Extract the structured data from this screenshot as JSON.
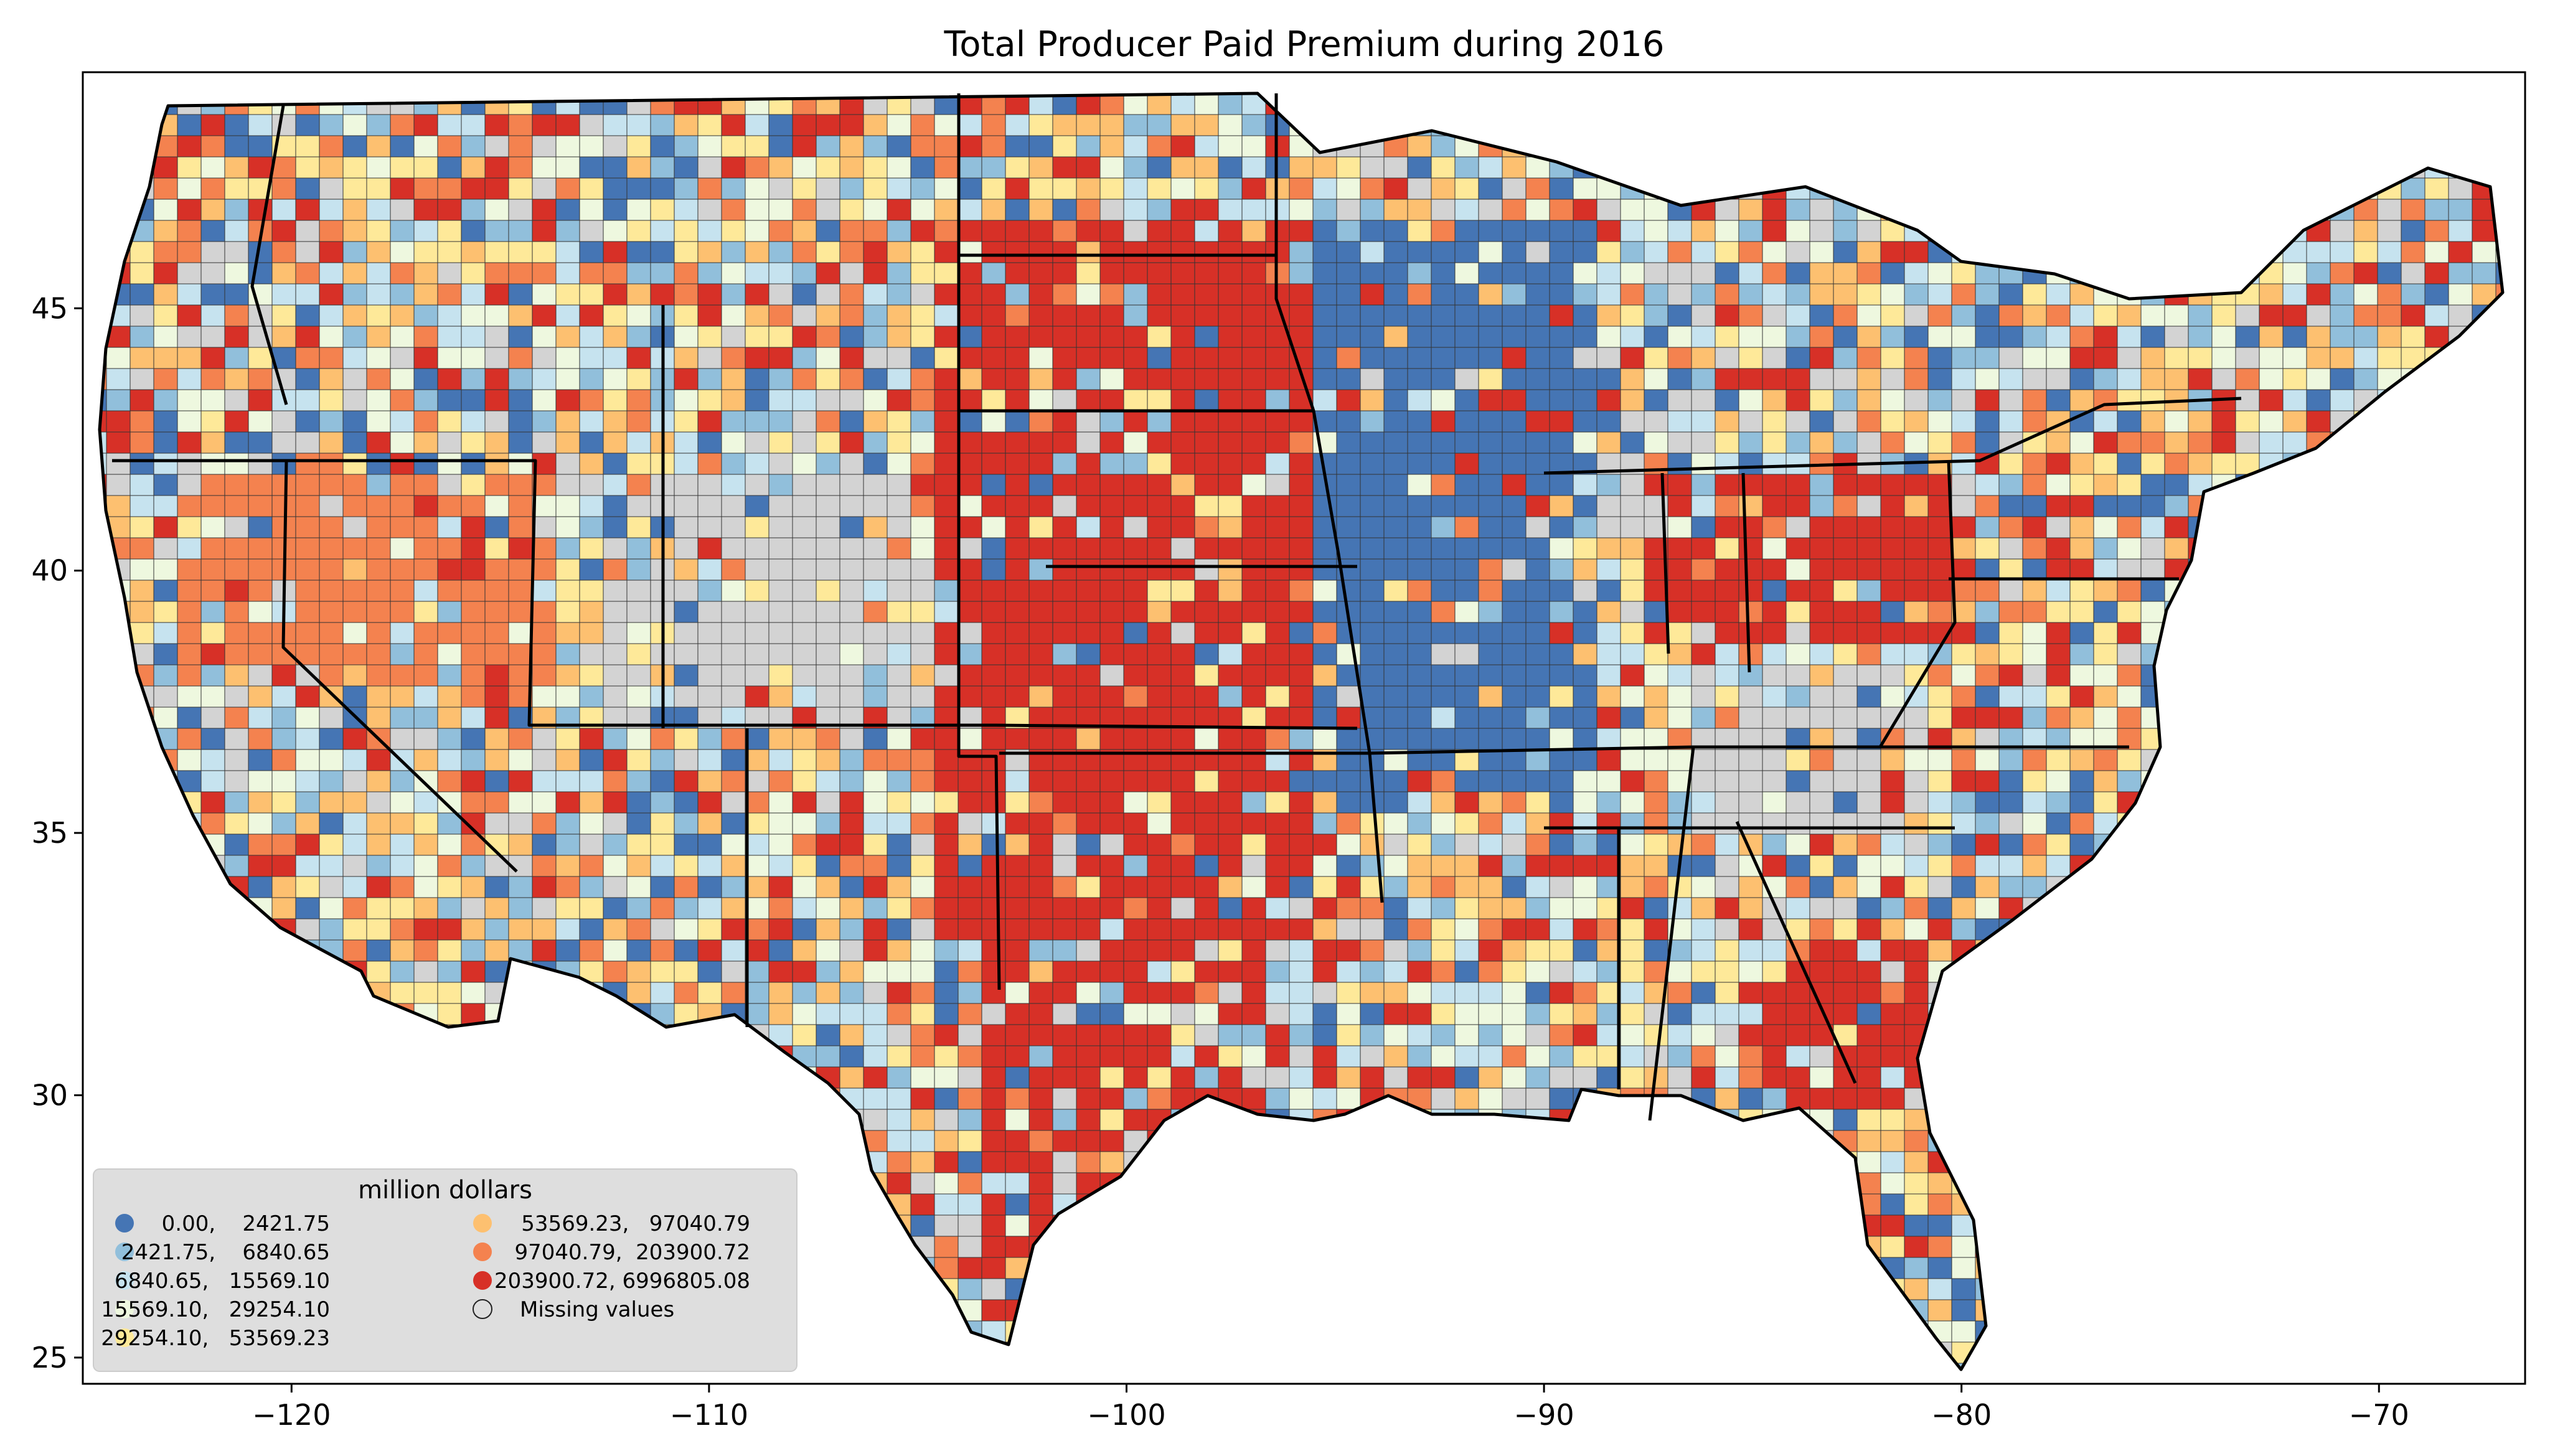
{
  "chart_data": {
    "type": "choropleth map",
    "title": "Total Producer Paid Premium during 2016",
    "xlabel": "",
    "ylabel": "",
    "xlim": [
      -125,
      -66.5
    ],
    "ylim": [
      24.5,
      49.5
    ],
    "x_ticks": [
      -120,
      -110,
      -100,
      -90,
      -80,
      -70
    ],
    "y_ticks": [
      25,
      30,
      35,
      40,
      45
    ],
    "x_tick_labels": [
      "−120",
      "−110",
      "−100",
      "−90",
      "−80",
      "−70"
    ],
    "y_tick_labels": [
      "25",
      "30",
      "35",
      "40",
      "45"
    ],
    "grid": false,
    "legend": {
      "title": "million dollars",
      "placement": "bottom-left",
      "columns": 2,
      "entries": [
        {
          "label": "0.00,    2421.75",
          "color": "#4575b4"
        },
        {
          "label": "2421.75,    6840.65",
          "color": "#91bfdb"
        },
        {
          "label": "6840.65,   15569.10",
          "color": "#c6e3ef"
        },
        {
          "label": "15569.10,   29254.10",
          "color": "#eef8df"
        },
        {
          "label": "29254.10,   53569.23",
          "color": "#fee999"
        },
        {
          "label": "53569.23,   97040.79",
          "color": "#fdc070"
        },
        {
          "label": "97040.79,  203900.72",
          "color": "#f4824f"
        },
        {
          "label": "203900.72, 6996805.08",
          "color": "#d73027"
        },
        {
          "label": "Missing values",
          "color": "#d3d3d3"
        }
      ]
    },
    "missing_color": "#d3d3d3"
  }
}
